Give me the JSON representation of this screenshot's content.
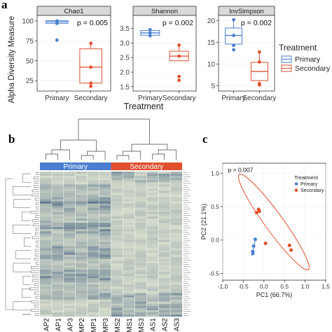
{
  "panel_a": {
    "letter": "a",
    "ylabel": "Alpha Diversity Measure",
    "xlabel": "Treatment",
    "legend_title": "Treatment",
    "legend_items": [
      "Primary",
      "Secondary"
    ],
    "colors": {
      "Primary": "#4a7fd0",
      "Secondary": "#e0502f"
    }
  },
  "panel_b": {
    "letter": "b",
    "groups": [
      "Primary",
      "Secondary"
    ],
    "group_colors": [
      "#4a7fd0",
      "#e0502f"
    ],
    "columns": [
      "AP2",
      "AP1",
      "AP3",
      "MP2",
      "MP1",
      "MP3",
      "MS2",
      "MS1",
      "MS3",
      "AS1",
      "AS2",
      "AS3"
    ],
    "heat_low": "#ecefd8",
    "heat_high": "#3c5a7a"
  },
  "panel_c": {
    "letter": "c"
  },
  "chart_data": [
    {
      "type": "box",
      "title": "Chao1",
      "categories": [
        "Primary",
        "Secondary"
      ],
      "annotation": "p = 0.005",
      "ylim": [
        12,
        107
      ],
      "yticks": [
        25,
        50,
        75,
        100
      ],
      "boxes": [
        {
          "name": "Primary",
          "min": 97,
          "q1": 97,
          "median": 99,
          "q3": 100.5,
          "max": 101,
          "points": [
            100,
            97,
            76
          ]
        },
        {
          "name": "Secondary",
          "min": 18,
          "q1": 22,
          "median": 42,
          "q3": 65,
          "max": 72,
          "points": [
            72,
            42,
            22,
            18
          ]
        }
      ]
    },
    {
      "type": "box",
      "title": "Shannon",
      "categories": [
        "Primary",
        "Secondary"
      ],
      "annotation": "p = 0.002",
      "ylim": [
        1.35,
        3.95
      ],
      "yticks": [
        1.5,
        2.0,
        2.5,
        3.0,
        3.5
      ],
      "boxes": [
        {
          "name": "Primary",
          "min": 3.24,
          "q1": 3.27,
          "median": 3.35,
          "q3": 3.43,
          "max": 3.47,
          "points": [
            3.46,
            3.35,
            3.25
          ]
        },
        {
          "name": "Secondary",
          "min": 2.38,
          "q1": 2.39,
          "median": 2.55,
          "q3": 2.72,
          "max": 2.92,
          "points": [
            2.93,
            2.55,
            1.85,
            1.72
          ]
        }
      ]
    },
    {
      "type": "box",
      "title": "InvSimpson",
      "categories": [
        "Primary",
        "Secondary"
      ],
      "annotation": "p = 0.002",
      "ylim": [
        3.8,
        21.2
      ],
      "yticks": [
        5,
        10,
        15,
        20
      ],
      "boxes": [
        {
          "name": "Primary",
          "min": 14,
          "q1": 14.6,
          "median": 16.6,
          "q3": 18.3,
          "max": 20.2,
          "points": [
            20.2,
            16.6,
            14.3,
            13.3
          ]
        },
        {
          "name": "Secondary",
          "min": 6,
          "q1": 6.2,
          "median": 8.3,
          "q3": 10.4,
          "max": 12.8,
          "points": [
            12.8,
            10.5,
            5.5,
            5.2
          ]
        }
      ]
    },
    {
      "type": "scatter",
      "title": "",
      "xlabel": "PC1 (66.7%)",
      "ylabel": "PC2 (21.1%)",
      "annotation": "p = 0.007",
      "xlim": [
        -1.0,
        1.5
      ],
      "ylim": [
        -0.6,
        1.15
      ],
      "xticks": [
        -1.0,
        -0.5,
        0.0,
        0.5,
        1.0,
        1.5
      ],
      "yticks": [
        -0.5,
        0.0,
        0.5,
        1.0
      ],
      "legend_title": "Treatment",
      "series": [
        {
          "name": "Primary",
          "color": "#4a7fd0",
          "points": [
            [
              -0.21,
              0.01
            ],
            [
              -0.25,
              -0.09
            ],
            [
              -0.27,
              -0.17
            ],
            [
              -0.27,
              -0.2
            ]
          ]
        },
        {
          "name": "Secondary",
          "color": "#e0502f",
          "points": [
            [
              -0.18,
              0.41
            ],
            [
              -0.13,
              0.46
            ],
            [
              -0.11,
              0.43
            ],
            [
              0.04,
              -0.05
            ],
            [
              0.62,
              -0.08
            ],
            [
              0.66,
              -0.15
            ]
          ]
        }
      ]
    }
  ]
}
